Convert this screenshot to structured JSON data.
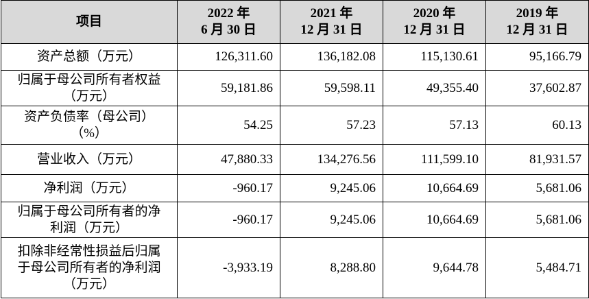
{
  "table": {
    "header": [
      [
        "项目"
      ],
      [
        "2022 年",
        "6 月 30 日"
      ],
      [
        "2021 年",
        "12 月 31 日"
      ],
      [
        "2020 年",
        "12 月 31 日"
      ],
      [
        "2019 年",
        "12 月 31 日"
      ]
    ],
    "rows": [
      {
        "label": [
          "资产总额（万元）"
        ],
        "values": [
          "126,311.60",
          "136,182.08",
          "115,130.61",
          "95,166.79"
        ]
      },
      {
        "label": [
          "归属于母公司所有者权益",
          "（万元）"
        ],
        "values": [
          "59,181.86",
          "59,598.11",
          "49,355.40",
          "37,602.87"
        ]
      },
      {
        "label": [
          "资产负债率（母公司）",
          "（%）"
        ],
        "values": [
          "54.25",
          "57.23",
          "57.13",
          "60.13"
        ]
      },
      {
        "label": [
          "营业收入（万元）"
        ],
        "values": [
          "47,880.33",
          "134,276.56",
          "111,599.10",
          "81,931.57"
        ]
      },
      {
        "label": [
          "净利润（万元）"
        ],
        "values": [
          "-960.17",
          "9,245.06",
          "10,664.69",
          "5,681.06"
        ]
      },
      {
        "label": [
          "归属于母公司所有者的净",
          "利润（万元）"
        ],
        "values": [
          "-960.17",
          "9,245.06",
          "10,664.69",
          "5,681.06"
        ]
      },
      {
        "label": [
          "扣除非经常性损益后归属",
          "于母公司所有者的净利润",
          "（万元）"
        ],
        "values": [
          "-3,933.19",
          "8,288.80",
          "9,644.78",
          "5,484.71"
        ]
      }
    ]
  }
}
